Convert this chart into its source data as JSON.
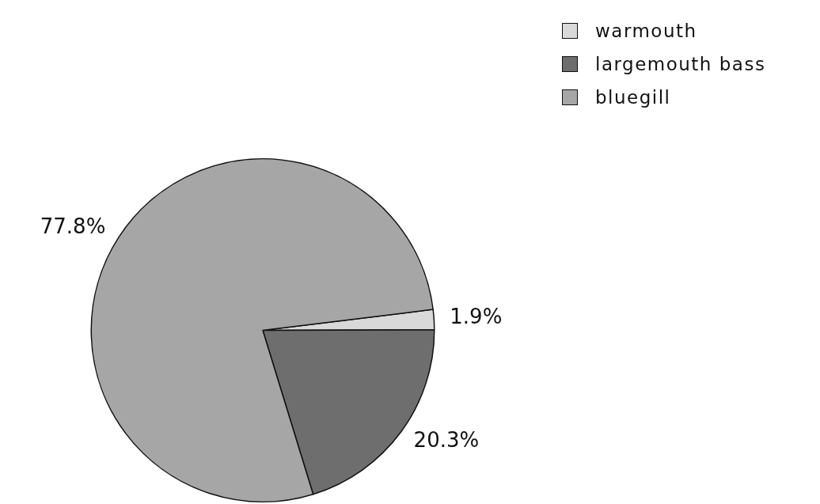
{
  "chart_data": {
    "type": "pie",
    "categories": [
      "warmouth",
      "largemouth bass",
      "bluegill"
    ],
    "values": [
      1.9,
      20.3,
      77.8
    ],
    "value_labels": [
      "1.9%",
      "20.3%",
      "77.8%"
    ],
    "colors": [
      "#d9d9d9",
      "#6e6e6e",
      "#a6a6a6"
    ],
    "legend": "top right"
  }
}
